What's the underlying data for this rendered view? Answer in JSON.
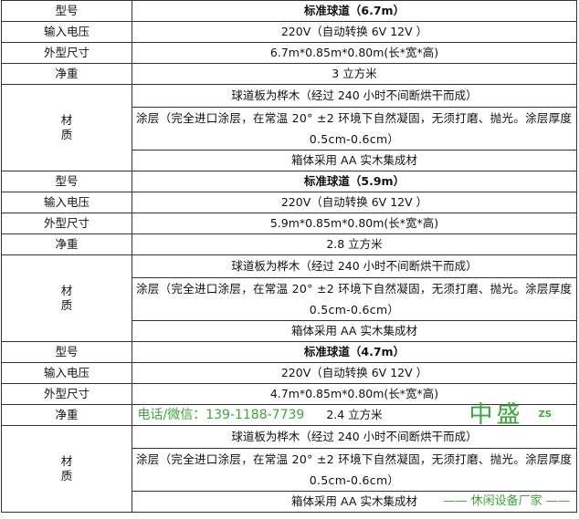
{
  "labels": {
    "model": "型号",
    "voltage": "输入电压",
    "size": "外型尺寸",
    "weight": "净重",
    "material": "材\n质"
  },
  "blocks": [
    {
      "title": "标准球道（6.7m）",
      "voltage": "220V（自动转换 6V 12V ）",
      "size": "6.7m*0.85m*0.80m(长*宽*高)",
      "weight": "3 立方米",
      "material": [
        "球道板为桦木（经过 240 小时不间断烘干而成）",
        "涂层（完全进口涂层，在常温 20° ±2 环境下自然凝固，无须打磨、抛光。涂层厚度 0.5cm-0.6cm）",
        "箱体采用 AA 实木集成材"
      ]
    },
    {
      "title": "标准球道（5.9m）",
      "voltage": "220V（自动转换 6V 12V ）",
      "size": "5.9m*0.85m*0.80m(长*宽*高)",
      "weight": "2.8 立方米",
      "material": [
        "球道板为桦木（经过 240 小时不间断烘干而成）",
        "涂层（完全进口涂层，在常温 20° ±2 环境下自然凝固，无须打磨、抛光。涂层厚度 0.5cm-0.6cm）",
        "箱体采用 AA 实木集成材"
      ]
    },
    {
      "title": "标准球道（4.7m）",
      "voltage": "220V（自动转换 6V 12V ）",
      "size": "4.7m*0.85m*0.80m(长*宽*高)",
      "weight": "2.4 立方米",
      "material": [
        "球道板为桦木（经过 240 小时不间断烘干而成）",
        "涂层（完全进口涂层，在常温 20° ±2 环境下自然凝固，无须打磨、抛光。涂层厚度 0.5cm-0.6cm）",
        "箱体采用 AA 实木集成材"
      ]
    }
  ],
  "watermark": {
    "zs": "ZS",
    "brand": "中盛",
    "sub": "—— 休闲设备厂家 ——",
    "tel": "电话/微信：139-1188-7739",
    "color": "#3aa83a"
  }
}
